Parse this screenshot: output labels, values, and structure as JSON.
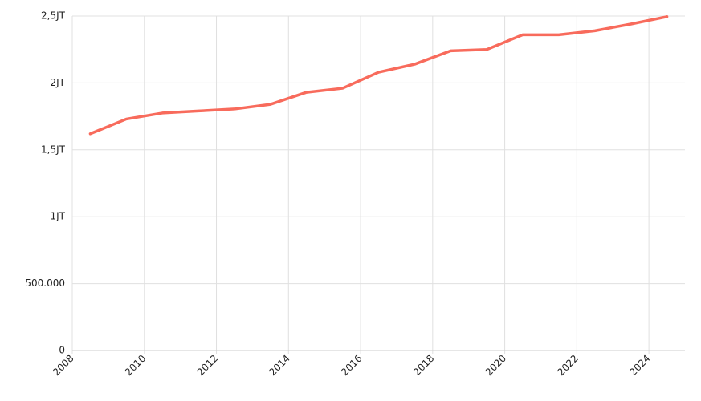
{
  "chart_data": {
    "type": "line",
    "x": [
      2008.5,
      2009.5,
      2010.5,
      2011.5,
      2012.5,
      2013.5,
      2014.5,
      2015.5,
      2016.5,
      2017.5,
      2018.5,
      2019.5,
      2020.5,
      2021.5,
      2022.5,
      2023.5,
      2024.5
    ],
    "values": [
      1620000,
      1730000,
      1775000,
      1790000,
      1805000,
      1840000,
      1930000,
      1960000,
      2080000,
      2140000,
      2240000,
      2250000,
      2360000,
      2360000,
      2390000,
      2440000,
      2495000
    ],
    "color": "#f86b5c",
    "xlim": [
      2008,
      2025
    ],
    "xticks": [
      2008,
      2010,
      2012,
      2014,
      2016,
      2018,
      2020,
      2022,
      2024
    ],
    "ylim": [
      0,
      2500000
    ],
    "yticks": [
      0,
      {
        "value": 500000,
        "label": "500.000"
      },
      {
        "value": 1000000,
        "label": "1JT"
      },
      {
        "value": 1500000,
        "label": "1,5JT"
      },
      {
        "value": 2000000,
        "label": "2JT"
      },
      {
        "value": 2500000,
        "label": "2,5JT"
      }
    ],
    "grid": true
  }
}
